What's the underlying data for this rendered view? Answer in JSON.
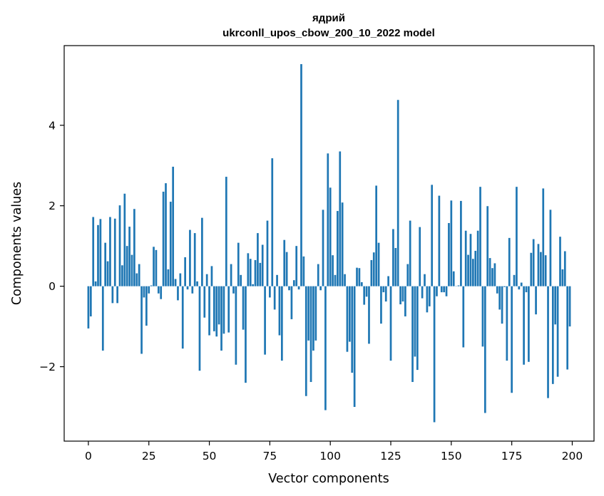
{
  "chart_data": {
    "type": "bar",
    "title": "ядрий",
    "subtitle": "ukrconll_upos_cbow_200_10_2022 model",
    "xlabel": "Vector components",
    "ylabel": "Components values",
    "xlim": [
      -10,
      209
    ],
    "ylim": [
      -3.85,
      5.98
    ],
    "xticks": [
      0,
      25,
      50,
      75,
      100,
      125,
      150,
      175,
      200
    ],
    "yticks": [
      -2,
      0,
      2,
      4
    ],
    "ytick_labels": [
      "−2",
      "0",
      "2",
      "4"
    ],
    "grid": false,
    "bar_color": "#1f77b4",
    "values": [
      -1.05,
      -0.75,
      1.72,
      0.12,
      1.52,
      1.67,
      -1.6,
      1.08,
      0.62,
      1.72,
      -0.42,
      1.68,
      -0.42,
      2.01,
      0.52,
      2.3,
      1.0,
      1.48,
      0.78,
      1.92,
      0.32,
      0.55,
      -1.68,
      -0.28,
      -0.98,
      -0.18,
      0.02,
      0.98,
      0.9,
      -0.18,
      -0.32,
      2.35,
      2.56,
      0.42,
      2.1,
      2.97,
      0.18,
      -0.35,
      0.32,
      -1.55,
      0.72,
      -0.08,
      1.4,
      -0.18,
      1.32,
      0.12,
      -2.1,
      1.7,
      -0.78,
      0.3,
      -1.22,
      0.5,
      -1.12,
      -1.25,
      -0.95,
      -1.6,
      -1.18,
      2.72,
      -1.15,
      0.55,
      -0.18,
      -1.95,
      1.08,
      0.28,
      -1.08,
      -2.4,
      0.82,
      0.68,
      0.05,
      0.65,
      1.32,
      0.58,
      1.03,
      -1.7,
      1.63,
      -0.28,
      3.18,
      -0.58,
      0.28,
      -1.22,
      -1.85,
      1.15,
      0.85,
      -0.1,
      -0.82,
      0.15,
      1.0,
      -0.08,
      5.52,
      0.74,
      -2.73,
      -1.35,
      -2.38,
      -1.6,
      -1.35,
      0.55,
      -0.1,
      1.9,
      -3.08,
      3.3,
      2.45,
      0.77,
      0.28,
      1.87,
      3.35,
      2.08,
      0.3,
      -1.63,
      -1.38,
      -2.15,
      -3.0,
      0.46,
      0.45,
      0.1,
      -0.46,
      -0.26,
      -1.43,
      0.65,
      0.84,
      2.5,
      1.08,
      -0.93,
      -0.15,
      -0.38,
      0.25,
      -1.85,
      1.42,
      0.95,
      4.63,
      -0.45,
      -0.38,
      -0.75,
      0.55,
      1.63,
      -2.38,
      -1.75,
      -2.08,
      1.47,
      -0.3,
      0.3,
      -0.65,
      -0.5,
      2.52,
      -3.38,
      -0.25,
      2.25,
      -0.15,
      -0.15,
      -0.25,
      1.57,
      2.13,
      0.37,
      0.0,
      0.02,
      2.12,
      -1.52,
      1.38,
      0.78,
      1.3,
      0.68,
      0.88,
      1.38,
      2.47,
      -1.5,
      -3.15,
      1.99,
      0.7,
      0.45,
      0.57,
      -0.18,
      -0.58,
      -0.93,
      -0.02,
      -1.85,
      1.2,
      -2.65,
      0.28,
      2.47,
      -0.08,
      0.09,
      -1.95,
      -0.15,
      -1.88,
      0.83,
      1.17,
      -0.7,
      1.05,
      0.85,
      2.43,
      0.77,
      -2.78,
      1.9,
      -2.43,
      -0.95,
      -2.25,
      1.23,
      0.42,
      0.87,
      -2.07,
      -1.0
    ]
  }
}
